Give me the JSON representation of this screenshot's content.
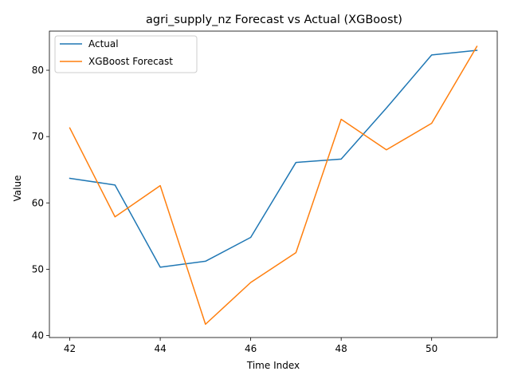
{
  "chart_data": {
    "type": "line",
    "title": "agri_supply_nz Forecast vs Actual (XGBoost)",
    "xlabel": "Time Index",
    "ylabel": "Value",
    "x": [
      42,
      43,
      44,
      45,
      46,
      47,
      48,
      49,
      50,
      51
    ],
    "xlim": [
      41.55,
      51.45
    ],
    "ylim": [
      39.7,
      85.9
    ],
    "xticks": [
      42,
      44,
      46,
      48,
      50
    ],
    "yticks": [
      40,
      50,
      60,
      70,
      80
    ],
    "grid": false,
    "legend_position": "top-left",
    "series": [
      {
        "name": "Actual",
        "color": "#1f77b4",
        "values": [
          63.7,
          62.7,
          50.3,
          51.2,
          54.8,
          66.1,
          66.6,
          74.3,
          82.3,
          83.0
        ]
      },
      {
        "name": "XGBoost Forecast",
        "color": "#ff7f0e",
        "values": [
          71.3,
          57.9,
          62.6,
          41.7,
          48.0,
          52.5,
          72.6,
          68.0,
          72.0,
          83.6
        ]
      }
    ]
  }
}
